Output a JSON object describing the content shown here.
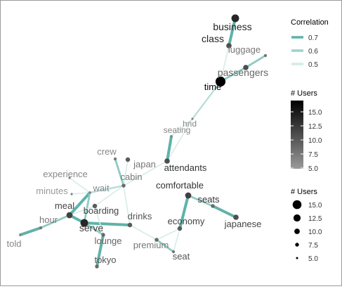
{
  "legend": {
    "correlation": {
      "title": "Correlation",
      "items": [
        {
          "label": "0.7",
          "value": 0.7,
          "color": "#5fb3a9"
        },
        {
          "label": "0.6",
          "value": 0.6,
          "color": "#9fd2cb"
        },
        {
          "label": "0.5",
          "value": 0.5,
          "color": "#d6ece9"
        }
      ]
    },
    "users_color": {
      "title": "# Users",
      "ticks": [
        "15.0",
        "12.5",
        "10.0",
        "7.5",
        "5.0"
      ],
      "low_color": "#9a9a9a",
      "high_color": "#000000"
    },
    "users_size": {
      "title": "# Users",
      "items": [
        {
          "label": "15.0",
          "value": 15.0
        },
        {
          "label": "12.5",
          "value": 12.5
        },
        {
          "label": "10.0",
          "value": 10.0
        },
        {
          "label": "7.5",
          "value": 7.5
        },
        {
          "label": "5.0",
          "value": 5.0
        }
      ]
    }
  },
  "nodes": [
    {
      "id": "business",
      "label": "business",
      "users": 12,
      "label_color": "#222222"
    },
    {
      "id": "class",
      "label": "class",
      "users": 9,
      "label_color": "#222222"
    },
    {
      "id": "luggage",
      "label": "luggage",
      "users": 6,
      "label_color": "#777777"
    },
    {
      "id": "passengers",
      "label": "passengers",
      "users": 9,
      "label_color": "#666666"
    },
    {
      "id": "time",
      "label": "time",
      "users": 15,
      "label_color": "#000000"
    },
    {
      "id": "hnd",
      "label": "hnd",
      "users": 5,
      "label_color": "#888888"
    },
    {
      "id": "seating",
      "label": "seating",
      "users": 5,
      "label_color": "#888888"
    },
    {
      "id": "attendants",
      "label": "attendants",
      "users": 9,
      "label_color": "#333333"
    },
    {
      "id": "crew",
      "label": "crew",
      "users": 6,
      "label_color": "#888888"
    },
    {
      "id": "japan",
      "label": "japan",
      "users": 8,
      "label_color": "#777777"
    },
    {
      "id": "cabin",
      "label": "cabin",
      "users": 7,
      "label_color": "#777777"
    },
    {
      "id": "comfortable",
      "label": "comfortable",
      "users": 10,
      "label_color": "#333333"
    },
    {
      "id": "seats",
      "label": "seats",
      "users": 7,
      "label_color": "#333333"
    },
    {
      "id": "japanese",
      "label": "japanese",
      "users": 9,
      "label_color": "#444444"
    },
    {
      "id": "experience",
      "label": "experience",
      "users": 5,
      "label_color": "#888888"
    },
    {
      "id": "minutes",
      "label": "minutes",
      "users": 5,
      "label_color": "#999999"
    },
    {
      "id": "wait",
      "label": "wait",
      "users": 5,
      "label_color": "#888888"
    },
    {
      "id": "meal",
      "label": "meal",
      "users": 10,
      "label_color": "#444444"
    },
    {
      "id": "boarding",
      "label": "boarding",
      "users": 8,
      "label_color": "#444444"
    },
    {
      "id": "hour",
      "label": "hour",
      "users": 6,
      "label_color": "#777777"
    },
    {
      "id": "serve",
      "label": "serve",
      "users": 12,
      "label_color": "#444444"
    },
    {
      "id": "drinks",
      "label": "drinks",
      "users": 8,
      "label_color": "#555555"
    },
    {
      "id": "economy",
      "label": "economy",
      "users": 8,
      "label_color": "#444444"
    },
    {
      "id": "lounge",
      "label": "lounge",
      "users": 7,
      "label_color": "#666666"
    },
    {
      "id": "premium",
      "label": "premium",
      "users": 7,
      "label_color": "#777777"
    },
    {
      "id": "told",
      "label": "told",
      "users": 5,
      "label_color": "#888888"
    },
    {
      "id": "tokyo",
      "label": "tokyo",
      "users": 7,
      "label_color": "#555555"
    },
    {
      "id": "seat",
      "label": "seat",
      "users": 6,
      "label_color": "#555555"
    }
  ],
  "edges": [
    {
      "from": "business",
      "to": "class",
      "correlation": 0.7
    },
    {
      "from": "class",
      "to": "time",
      "correlation": 0.5
    },
    {
      "from": "luggage",
      "to": "passengers",
      "correlation": 0.6
    },
    {
      "from": "passengers",
      "to": "time",
      "correlation": 0.6
    },
    {
      "from": "time",
      "to": "hnd",
      "correlation": 0.55
    },
    {
      "from": "hnd",
      "to": "seating",
      "correlation": 0.5
    },
    {
      "from": "hnd",
      "to": "attendants",
      "correlation": 0.5
    },
    {
      "from": "seating",
      "to": "attendants",
      "correlation": 0.7
    },
    {
      "from": "attendants",
      "to": "cabin",
      "correlation": 0.5
    },
    {
      "from": "crew",
      "to": "cabin",
      "correlation": 0.6
    },
    {
      "from": "japan",
      "to": "cabin",
      "correlation": 0.5
    },
    {
      "from": "cabin",
      "to": "wait",
      "correlation": 0.55
    },
    {
      "from": "cabin",
      "to": "boarding",
      "correlation": 0.5
    },
    {
      "from": "cabin",
      "to": "drinks",
      "correlation": 0.5
    },
    {
      "from": "experience",
      "to": "wait",
      "correlation": 0.5
    },
    {
      "from": "minutes",
      "to": "wait",
      "correlation": 0.5
    },
    {
      "from": "wait",
      "to": "meal",
      "correlation": 0.7
    },
    {
      "from": "wait",
      "to": "serve",
      "correlation": 0.6
    },
    {
      "from": "meal",
      "to": "hour",
      "correlation": 0.6
    },
    {
      "from": "hour",
      "to": "told",
      "correlation": 0.7
    },
    {
      "from": "meal",
      "to": "boarding",
      "correlation": 0.5
    },
    {
      "from": "meal",
      "to": "serve",
      "correlation": 0.7
    },
    {
      "from": "serve",
      "to": "lounge",
      "correlation": 0.6
    },
    {
      "from": "serve",
      "to": "drinks",
      "correlation": 0.7
    },
    {
      "from": "boarding",
      "to": "lounge",
      "correlation": 0.5
    },
    {
      "from": "lounge",
      "to": "tokyo",
      "correlation": 0.7
    },
    {
      "from": "drinks",
      "to": "premium",
      "correlation": 0.5
    },
    {
      "from": "premium",
      "to": "economy",
      "correlation": 0.5
    },
    {
      "from": "premium",
      "to": "seat",
      "correlation": 0.6
    },
    {
      "from": "economy",
      "to": "seat",
      "correlation": 0.5
    },
    {
      "from": "economy",
      "to": "comfortable",
      "correlation": 0.7
    },
    {
      "from": "comfortable",
      "to": "seats",
      "correlation": 0.6
    },
    {
      "from": "seats",
      "to": "japanese",
      "correlation": 0.7
    }
  ]
}
